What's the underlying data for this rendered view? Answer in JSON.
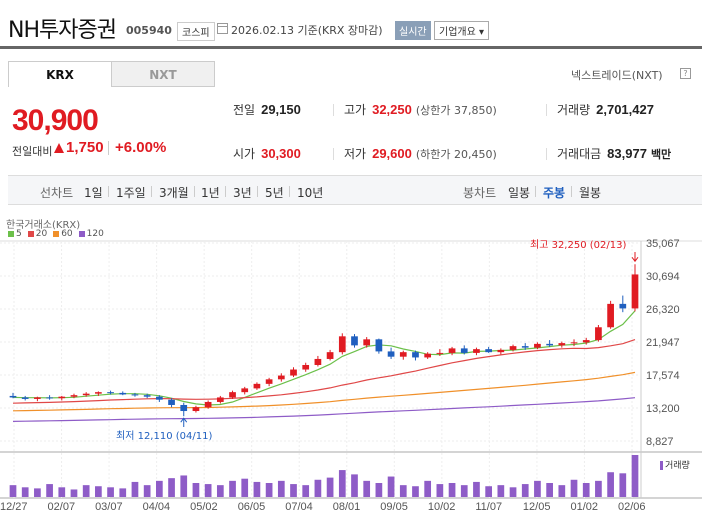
{
  "header": {
    "title": "NH투자증권",
    "code": "005940",
    "market": "코스피",
    "date": "2026.02.13 기준(KRX 장마감)",
    "realtime": "실시간",
    "overview": "기업개요 ▾"
  },
  "tabs": [
    "KRX",
    "NXT"
  ],
  "nextrade": "넥스트레이드(NXT)",
  "price": {
    "current": "30,900",
    "change_label": "전일대비",
    "change": "1,750",
    "change_pct": "+6.00%"
  },
  "stats": {
    "prev_label": "전일",
    "prev": "29,150",
    "open_label": "시가",
    "open": "30,300",
    "high_label": "고가",
    "high": "32,250",
    "upper_limit": "(상한가 37,850)",
    "low_label": "저가",
    "low": "29,600",
    "lower_limit": "(하한가 20,450)",
    "volume_label": "거래량",
    "volume": "2,701,427",
    "amount_label": "거래대금",
    "amount": "83,977",
    "amount_unit": "백만"
  },
  "period": {
    "label": "선차트",
    "items": [
      "1일",
      "1주일",
      "3개월",
      "1년",
      "3년",
      "5년",
      "10년"
    ],
    "candle_label": "봉차트",
    "candle_items": [
      "일봉",
      "주봉",
      "월봉"
    ],
    "candle_active": "주봉"
  },
  "chart": {
    "source": "한국거래소(KRX)",
    "legend": [
      {
        "label": "5",
        "color": "#6cc04a"
      },
      {
        "label": "20",
        "color": "#e04848"
      },
      {
        "label": "60",
        "color": "#f0902a"
      },
      {
        "label": "120",
        "color": "#8e5cc7"
      }
    ],
    "high_annotation": "최고 32,250 (02/13)",
    "low_annotation": "최저 12,110 (04/11)",
    "volume_label": "거래량"
  },
  "chart_data": {
    "type": "candlestick",
    "y_ticks": [
      "35,067",
      "30,694",
      "26,320",
      "21,947",
      "17,574",
      "13,200",
      "8,827"
    ],
    "ylim": [
      8827,
      35067
    ],
    "x_ticks": [
      "12/27",
      "02/07",
      "03/07",
      "04/04",
      "05/02",
      "06/05",
      "07/04",
      "08/01",
      "09/05",
      "10/02",
      "11/07",
      "12/05",
      "01/02",
      "02/06"
    ],
    "candles": [
      [
        14800,
        15200,
        14500,
        14600
      ],
      [
        14600,
        14800,
        14200,
        14400
      ],
      [
        14400,
        14700,
        14100,
        14600
      ],
      [
        14600,
        14900,
        14300,
        14500
      ],
      [
        14500,
        14800,
        14200,
        14700
      ],
      [
        14700,
        15100,
        14500,
        14900
      ],
      [
        14900,
        15300,
        14700,
        15100
      ],
      [
        15100,
        15400,
        14800,
        15300
      ],
      [
        15300,
        15500,
        15000,
        15200
      ],
      [
        15200,
        15400,
        14900,
        15000
      ],
      [
        15000,
        15200,
        14700,
        14900
      ],
      [
        14900,
        15100,
        14500,
        14700
      ],
      [
        14700,
        14900,
        14000,
        14300
      ],
      [
        14300,
        14500,
        13300,
        13600
      ],
      [
        13600,
        13900,
        12110,
        12800
      ],
      [
        12800,
        13500,
        12600,
        13300
      ],
      [
        13300,
        14200,
        13100,
        14000
      ],
      [
        14000,
        14800,
        13800,
        14600
      ],
      [
        14600,
        15500,
        14400,
        15300
      ],
      [
        15300,
        16000,
        15000,
        15800
      ],
      [
        15800,
        16600,
        15600,
        16400
      ],
      [
        16400,
        17200,
        16100,
        17000
      ],
      [
        17000,
        17800,
        16700,
        17500
      ],
      [
        17500,
        18600,
        17300,
        18300
      ],
      [
        18300,
        19200,
        18000,
        18900
      ],
      [
        18900,
        20100,
        18700,
        19700
      ],
      [
        19700,
        20900,
        19500,
        20600
      ],
      [
        20600,
        23100,
        20300,
        22700
      ],
      [
        22700,
        23000,
        21200,
        21500
      ],
      [
        21500,
        22600,
        21200,
        22300
      ],
      [
        22300,
        22400,
        20400,
        20700
      ],
      [
        20700,
        21200,
        19700,
        20000
      ],
      [
        20000,
        20800,
        19600,
        20600
      ],
      [
        20600,
        20800,
        19500,
        19900
      ],
      [
        19900,
        20600,
        19700,
        20400
      ],
      [
        20400,
        21000,
        20100,
        20500
      ],
      [
        20500,
        21300,
        20200,
        21100
      ],
      [
        21100,
        21500,
        20300,
        20500
      ],
      [
        20500,
        21200,
        20200,
        21000
      ],
      [
        21000,
        21300,
        20500,
        20600
      ],
      [
        20600,
        21100,
        20300,
        20900
      ],
      [
        20900,
        21600,
        20700,
        21400
      ],
      [
        21400,
        21800,
        20900,
        21200
      ],
      [
        21200,
        21900,
        21000,
        21700
      ],
      [
        21700,
        22200,
        21300,
        21500
      ],
      [
        21500,
        22000,
        21200,
        21800
      ],
      [
        21800,
        22300,
        21400,
        21900
      ],
      [
        21900,
        22500,
        21600,
        22200
      ],
      [
        22200,
        24200,
        22000,
        23900
      ],
      [
        23900,
        27400,
        23700,
        27000
      ],
      [
        27000,
        28100,
        25900,
        26400
      ],
      [
        26400,
        32250,
        26000,
        30900
      ]
    ],
    "volume": [
      22,
      18,
      16,
      24,
      18,
      14,
      22,
      20,
      18,
      16,
      28,
      22,
      30,
      35,
      40,
      26,
      24,
      22,
      30,
      34,
      28,
      26,
      30,
      24,
      22,
      32,
      36,
      50,
      42,
      30,
      26,
      38,
      22,
      20,
      30,
      24,
      26,
      22,
      28,
      20,
      22,
      18,
      24,
      30,
      26,
      22,
      32,
      26,
      30,
      46,
      44,
      78
    ]
  }
}
